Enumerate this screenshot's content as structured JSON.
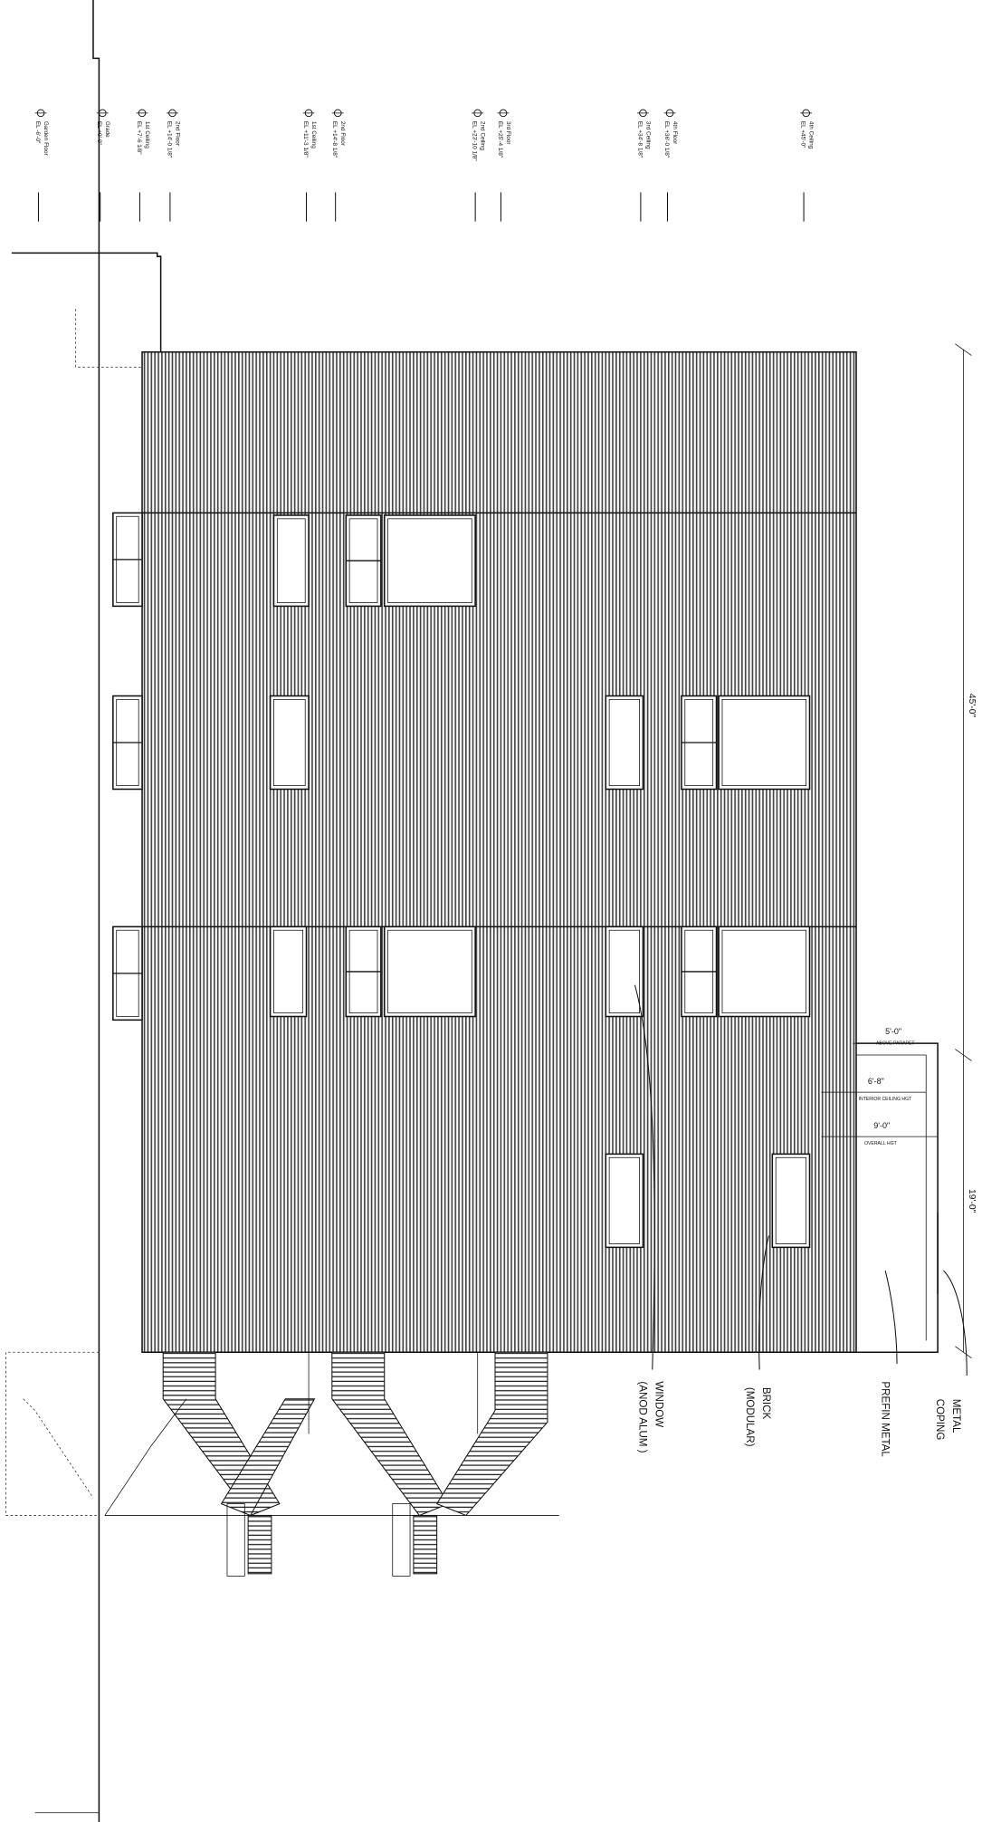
{
  "levels": [
    {
      "name": "Garden Floor",
      "elevation": "EL -6'-0\""
    },
    {
      "name": "Grade",
      "elevation": "EL +0'-0\""
    },
    {
      "name": "1st Ceiling",
      "elevation": "EL +7'-6 1/8\""
    },
    {
      "name": "2nd Floor",
      "elevation": "EL +14'-0 1/8\""
    },
    {
      "name": "1st Ceiling",
      "elevation": "EL +11'-3 1/8\""
    },
    {
      "name": "2nd Floor",
      "elevation": "EL +14'-8 1/8\""
    },
    {
      "name": "2nd Ceiling",
      "elevation": "EL +23'-10 1/8\""
    },
    {
      "name": "3rd Floor",
      "elevation": "EL +25'-4 1/8\""
    },
    {
      "name": "3rd Ceiling",
      "elevation": "EL +34'-8 1/8\""
    },
    {
      "name": "4th Floor",
      "elevation": "EL +36'-0 1/8\""
    },
    {
      "name": "4th Ceiling",
      "elevation": "EL +45'-0\""
    }
  ],
  "dimensions": {
    "total": "45'-0\"",
    "parapet_zone": "19'-0\"",
    "above_parapet": {
      "value": "5'-0\"",
      "label": "ABOVE PARAPET"
    },
    "interior": {
      "value": "6'-8\"",
      "label": "INTERIOR CEILING HGT"
    },
    "overall": {
      "value": "9'-0\"",
      "label": "OVERALL HGT"
    }
  },
  "notes": [
    {
      "lines": [
        "WINDOW",
        "(ANOD ALUM )"
      ]
    },
    {
      "lines": [
        "BRICK",
        "(MODULAR)"
      ]
    },
    {
      "lines": [
        "PREFIN METAL"
      ]
    },
    {
      "lines": [
        "METAL",
        "COPING"
      ]
    }
  ]
}
